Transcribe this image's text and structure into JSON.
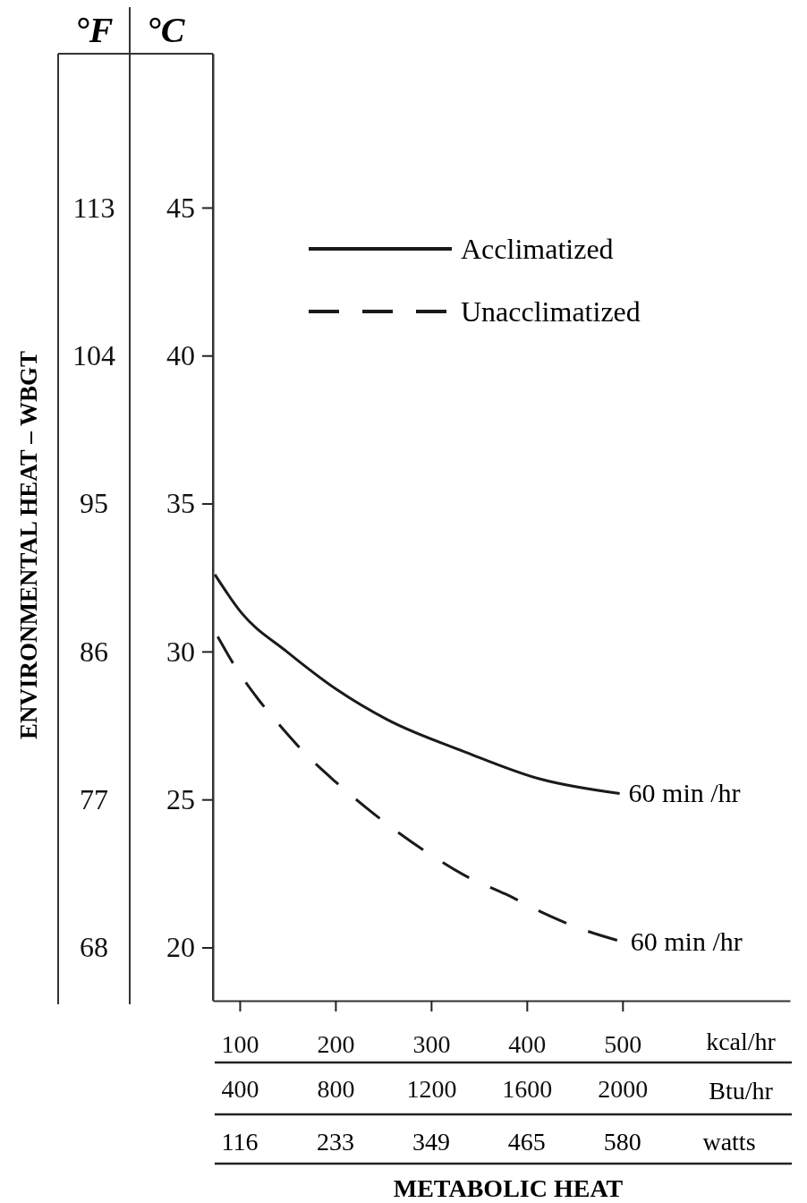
{
  "chart_data": {
    "type": "line",
    "ylabel": "ENVIRONMENTAL HEAT – WBGT",
    "xlabel": "METABOLIC HEAT",
    "xlim": [
      72,
      675
    ],
    "xticks": [
      100,
      200,
      300,
      400,
      500
    ],
    "x2lim": [
      288,
      2700
    ],
    "x2ticks": [
      400,
      800,
      1200,
      1600,
      2000
    ],
    "ylim": [
      64.76,
      122.36
    ],
    "yticks": [
      68,
      77,
      86,
      95,
      104,
      113
    ],
    "y2lim": [
      18.2,
      50.2
    ],
    "y2ticks": [
      20,
      25,
      30,
      35,
      40,
      45
    ],
    "legend": "top",
    "series": [
      {
        "name": "Acclimatized",
        "color": "#1a1a1a",
        "line_style": "solid",
        "axis": "y2",
        "x": [
          74,
          102,
          149,
          202,
          254,
          336,
          413,
          497
        ],
        "values": [
          32.6,
          31.3,
          30.0,
          28.7,
          27.7,
          26.6,
          25.7,
          25.2
        ]
      },
      {
        "name": "Unacclimatized",
        "color": "#1a1a1a",
        "line_style": "dashed",
        "axis": "y2",
        "x": [
          77,
          95,
          119,
          142,
          170,
          200,
          233,
          265,
          301,
          337,
          378,
          415,
          459,
          499
        ],
        "values": [
          30.5,
          29.5,
          28.4,
          27.5,
          26.5,
          25.6,
          24.7,
          23.9,
          23.1,
          22.4,
          21.8,
          21.2,
          20.6,
          20.2
        ]
      }
    ],
    "annotations": [
      "°F",
      "°C",
      "kcal/hr",
      "Btu/hr",
      "watts",
      "116",
      "233",
      "349",
      "465",
      "580",
      {
        "text": "60 min /hr",
        "x": 497,
        "y": 77.4
      },
      {
        "text": "60 min /hr",
        "x": 499,
        "y": 68.4
      }
    ]
  }
}
